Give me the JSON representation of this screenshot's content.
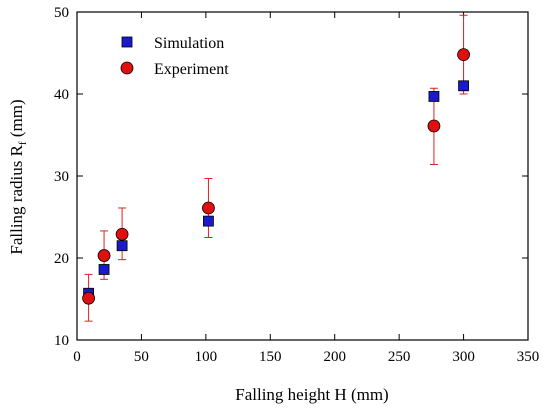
{
  "chart_data": {
    "type": "scatter",
    "xlabel": "Falling height H (mm)",
    "ylabel_main": "Falling radius R",
    "ylabel_sub": "f",
    "ylabel_unit": " (mm)",
    "xlim": [
      0,
      350
    ],
    "ylim": [
      10,
      50
    ],
    "xticks": [
      0,
      50,
      100,
      150,
      200,
      250,
      300,
      350
    ],
    "yticks": [
      10,
      20,
      30,
      40,
      50
    ],
    "grid": false,
    "legend": "top-left",
    "series": [
      {
        "name": "Simulation",
        "marker": "square",
        "color": "#1a1acc",
        "x": [
          9,
          21,
          35,
          102,
          277,
          300
        ],
        "y": [
          15.7,
          18.6,
          21.5,
          24.5,
          39.7,
          41.0
        ]
      },
      {
        "name": "Experiment",
        "marker": "circle",
        "color": "#e01010",
        "error_color": "#e02020",
        "x": [
          9,
          21,
          35,
          102,
          277,
          300
        ],
        "y": [
          15.1,
          20.3,
          22.9,
          26.1,
          36.1,
          44.8
        ],
        "err_low": [
          12.3,
          17.4,
          19.8,
          22.5,
          31.4,
          40.0
        ],
        "err_high": [
          18.0,
          23.3,
          26.1,
          29.7,
          40.7,
          49.6
        ]
      }
    ]
  }
}
